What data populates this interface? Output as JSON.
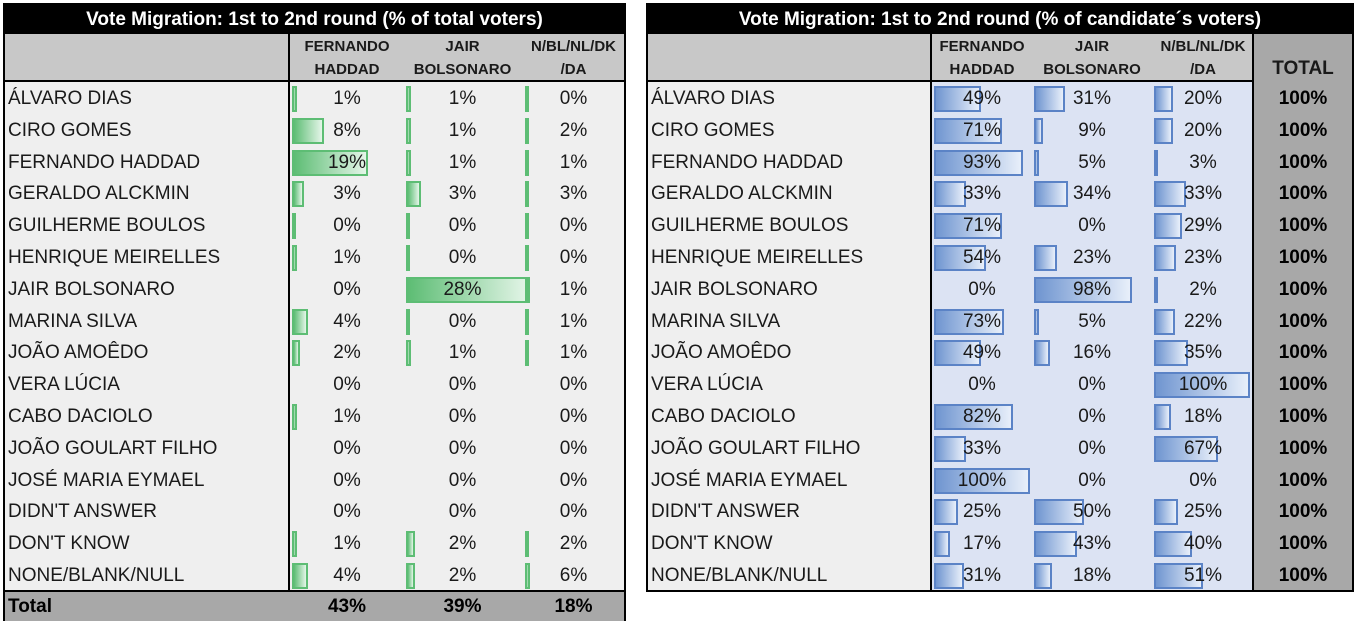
{
  "colors": {
    "green_bar": "#5dbd74",
    "blue_bar": "#6f95d0",
    "header_bg": "#c8c8c8",
    "total_bg": "#a8a8a8",
    "title_bg": "#000000"
  },
  "chart_data": [
    {
      "type": "table",
      "title": "Vote Migration: 1st to 2nd round (% of total voters)",
      "columns": [
        "FERNANDO\nHADDAD",
        "JAIR\nBOLSONARO",
        "N/BL/NL/DK\n/DA"
      ],
      "rows": [
        "ÁLVARO DIAS",
        "CIRO GOMES",
        "FERNANDO HADDAD",
        "GERALDO ALCKMIN",
        "GUILHERME BOULOS",
        "HENRIQUE MEIRELLES",
        "JAIR BOLSONARO",
        "MARINA SILVA",
        "JOÃO AMOÊDO",
        "VERA LÚCIA",
        "CABO DACIOLO",
        "JOÃO GOULART FILHO",
        "JOSÉ MARIA EYMAEL",
        "DIDN'T ANSWER",
        "DON'T KNOW",
        "NONE/BLANK/NULL"
      ],
      "values": [
        [
          1,
          1,
          0
        ],
        [
          8,
          1,
          2
        ],
        [
          19,
          1,
          1
        ],
        [
          3,
          3,
          3
        ],
        [
          0,
          0,
          0
        ],
        [
          1,
          0,
          0
        ],
        [
          0,
          28,
          1
        ],
        [
          4,
          0,
          1
        ],
        [
          2,
          1,
          1
        ],
        [
          0,
          0,
          0
        ],
        [
          1,
          0,
          0
        ],
        [
          0,
          0,
          0
        ],
        [
          0,
          0,
          0
        ],
        [
          0,
          0,
          0
        ],
        [
          1,
          2,
          2
        ],
        [
          4,
          2,
          6
        ]
      ],
      "bar_fill": [
        [
          0.06,
          0.04,
          0.02
        ],
        [
          0.42,
          0.04,
          0.08
        ],
        [
          1.0,
          0.04,
          0.04
        ],
        [
          0.16,
          0.12,
          0.1
        ],
        [
          0.02,
          0.02,
          0.02
        ],
        [
          0.06,
          0.02,
          0.02
        ],
        [
          0,
          1.0,
          0.04
        ],
        [
          0.21,
          0.02,
          0.04
        ],
        [
          0.11,
          0.04,
          0.04
        ],
        [
          0,
          0,
          0
        ],
        [
          0.06,
          0,
          0
        ],
        [
          0,
          0,
          0
        ],
        [
          0,
          0,
          0
        ],
        [
          0,
          0,
          0
        ],
        [
          0.06,
          0.07,
          0.08
        ],
        [
          0.21,
          0.07,
          0.23
        ]
      ],
      "total_label": "Total",
      "totals": [
        "43%",
        "39%",
        "18%"
      ]
    },
    {
      "type": "table",
      "title": "Vote Migration: 1st to 2nd round (% of candidate´s voters)",
      "columns": [
        "FERNANDO\nHADDAD",
        "JAIR\nBOLSONARO",
        "N/BL/NL/DK\n/DA",
        "TOTAL"
      ],
      "rows": [
        "ÁLVARO DIAS",
        "CIRO GOMES",
        "FERNANDO HADDAD",
        "GERALDO ALCKMIN",
        "GUILHERME BOULOS",
        "HENRIQUE MEIRELLES",
        "JAIR BOLSONARO",
        "MARINA SILVA",
        "JOÃO AMOÊDO",
        "VERA LÚCIA",
        "CABO DACIOLO",
        "JOÃO GOULART FILHO",
        "JOSÉ MARIA EYMAEL",
        "DIDN'T ANSWER",
        "DON'T KNOW",
        "NONE/BLANK/NULL"
      ],
      "values": [
        [
          49,
          31,
          20
        ],
        [
          71,
          9,
          20
        ],
        [
          93,
          5,
          3
        ],
        [
          33,
          34,
          33
        ],
        [
          71,
          0,
          29
        ],
        [
          54,
          23,
          23
        ],
        [
          0,
          98,
          2
        ],
        [
          73,
          5,
          22
        ],
        [
          49,
          16,
          35
        ],
        [
          0,
          0,
          100
        ],
        [
          82,
          0,
          18
        ],
        [
          33,
          0,
          67
        ],
        [
          100,
          0,
          0
        ],
        [
          25,
          50,
          25
        ],
        [
          17,
          43,
          40
        ],
        [
          31,
          18,
          51
        ]
      ],
      "row_total": "100%"
    }
  ]
}
